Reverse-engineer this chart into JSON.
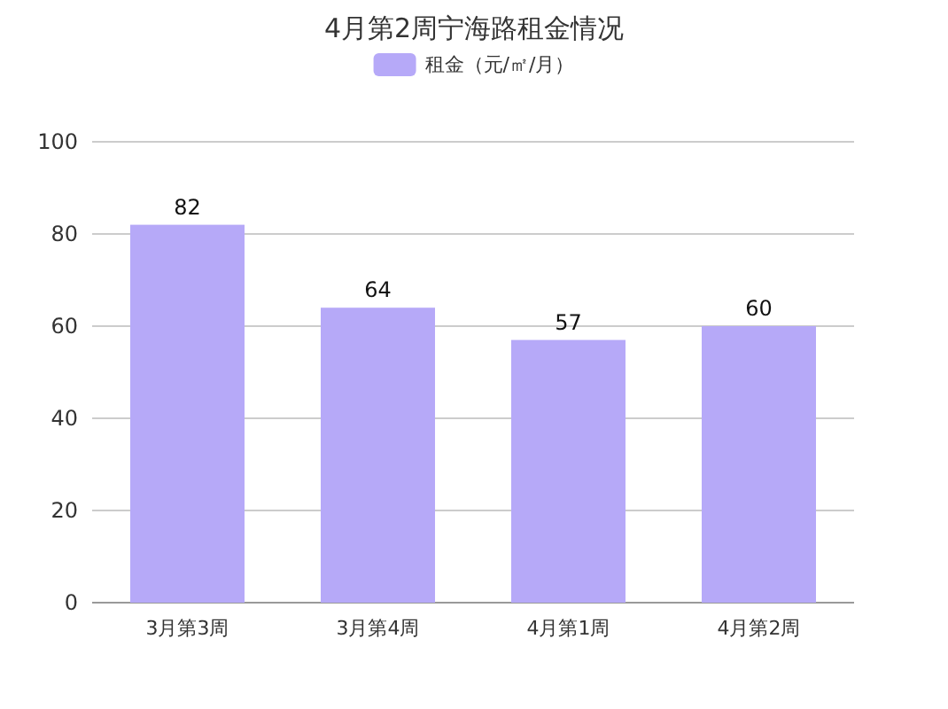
{
  "chart_data": {
    "type": "bar",
    "title": "4月第2周宁海路租金情况",
    "categories": [
      "3月第3周",
      "3月第4周",
      "4月第1周",
      "4月第2周"
    ],
    "series": [
      {
        "name": "租金（元/㎡/月）",
        "color": "#b6a9f8",
        "values": [
          82,
          64,
          57,
          60
        ]
      }
    ],
    "ylim": [
      0,
      100
    ],
    "yticks": [
      0,
      20,
      40,
      60,
      80,
      100
    ],
    "grid": "y",
    "legend": "top",
    "data_labels": true
  }
}
